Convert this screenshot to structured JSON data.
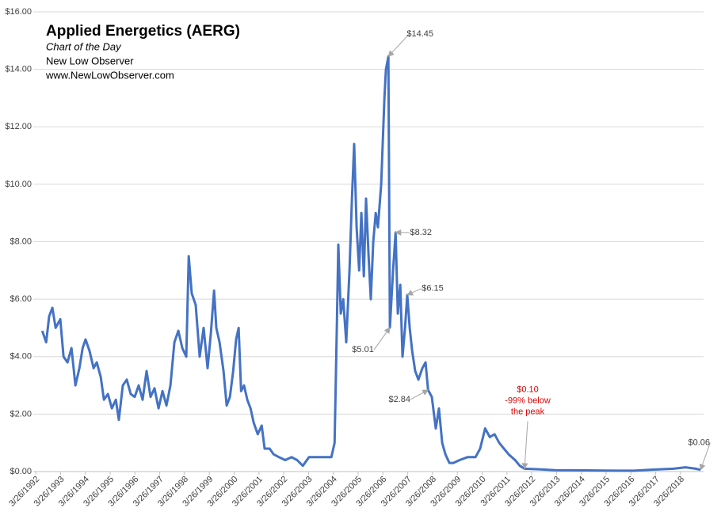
{
  "chart_data": {
    "type": "line",
    "title": "Applied Energetics (AERG)",
    "subtitle": "Chart of the Day",
    "source_lines": [
      "New Low Observer",
      "www.NewLowObserver.com"
    ],
    "color": "#4472c4",
    "grid": true,
    "x": [
      1992.49,
      1992.65,
      1992.77,
      1992.9,
      1993.03,
      1993.22,
      1993.35,
      1993.51,
      1993.67,
      1993.83,
      1993.99,
      1994.12,
      1994.24,
      1994.4,
      1994.56,
      1994.69,
      1994.85,
      1994.98,
      1995.14,
      1995.3,
      1995.46,
      1995.58,
      1995.74,
      1995.9,
      1996.06,
      1996.22,
      1996.38,
      1996.54,
      1996.7,
      1996.86,
      1997.02,
      1997.18,
      1997.34,
      1997.5,
      1997.66,
      1997.82,
      1997.98,
      1998.14,
      1998.3,
      1998.4,
      1998.52,
      1998.68,
      1998.84,
      1999.0,
      1999.16,
      1999.29,
      1999.42,
      1999.51,
      1999.64,
      1999.8,
      1999.93,
      2000.06,
      2000.19,
      2000.31,
      2000.41,
      2000.51,
      2000.63,
      2000.76,
      2000.89,
      2001.02,
      2001.18,
      2001.34,
      2001.46,
      2001.66,
      2001.82,
      2002.04,
      2002.29,
      2002.55,
      2002.77,
      2003.0,
      2003.25,
      2003.57,
      2003.89,
      2004.15,
      2004.28,
      2004.37,
      2004.43,
      2004.53,
      2004.63,
      2004.75,
      2004.88,
      2004.98,
      2005.07,
      2005.17,
      2005.27,
      2005.36,
      2005.46,
      2005.55,
      2005.65,
      2005.74,
      2005.84,
      2005.94,
      2006.03,
      2006.16,
      2006.29,
      2006.35,
      2006.45,
      2006.48,
      2006.51,
      2006.64,
      2006.74,
      2006.83,
      2006.93,
      2007.02,
      2007.12,
      2007.21,
      2007.31,
      2007.41,
      2007.53,
      2007.66,
      2007.82,
      2007.95,
      2008.05,
      2008.2,
      2008.36,
      2008.49,
      2008.62,
      2008.75,
      2008.91,
      2009.07,
      2009.32,
      2009.64,
      2009.96,
      2010.15,
      2010.35,
      2010.54,
      2010.73,
      2010.92,
      2011.11,
      2011.3,
      2011.56,
      2011.75,
      2011.94,
      2012.52,
      2013.16,
      2014.43,
      2015.71,
      2016.35,
      2016.99,
      2017.95,
      2018.43,
      2018.84,
      2019.04
    ],
    "values": [
      4.9,
      4.5,
      5.4,
      5.7,
      5.0,
      5.3,
      4.0,
      3.8,
      4.3,
      3.0,
      3.6,
      4.3,
      4.6,
      4.2,
      3.6,
      3.8,
      3.3,
      2.5,
      2.7,
      2.2,
      2.5,
      1.8,
      3.0,
      3.2,
      2.7,
      2.6,
      3.0,
      2.5,
      3.5,
      2.6,
      2.9,
      2.2,
      2.8,
      2.3,
      3.0,
      4.5,
      4.9,
      4.3,
      4.0,
      7.5,
      6.2,
      5.8,
      4.0,
      5.0,
      3.6,
      4.8,
      6.3,
      5.0,
      4.5,
      3.5,
      2.3,
      2.6,
      3.5,
      4.6,
      5.0,
      2.8,
      3.0,
      2.5,
      2.2,
      1.7,
      1.3,
      1.6,
      0.8,
      0.8,
      0.6,
      0.5,
      0.4,
      0.5,
      0.4,
      0.2,
      0.5,
      0.5,
      0.5,
      0.5,
      1.0,
      5.0,
      7.9,
      5.5,
      6.0,
      4.5,
      7.0,
      9.5,
      11.4,
      8.5,
      7.0,
      9.0,
      6.8,
      9.5,
      7.5,
      6.0,
      8.0,
      9.0,
      8.5,
      10.0,
      13.0,
      14.0,
      14.45,
      10.0,
      5.01,
      7.0,
      8.32,
      5.5,
      6.5,
      4.0,
      5.0,
      6.15,
      5.0,
      4.2,
      3.5,
      3.2,
      3.6,
      3.8,
      2.84,
      2.6,
      1.5,
      2.2,
      1.0,
      0.6,
      0.3,
      0.3,
      0.4,
      0.5,
      0.5,
      0.8,
      1.5,
      1.2,
      1.3,
      1.0,
      0.8,
      0.6,
      0.4,
      0.2,
      0.1,
      0.08,
      0.05,
      0.04,
      0.03,
      0.03,
      0.06,
      0.1,
      0.15,
      0.1,
      0.06
    ],
    "xlim": [
      1992.13,
      2019.16
    ],
    "xticks": [
      {
        "value": 1992.23,
        "label": "3/26/1992"
      },
      {
        "value": 1993.23,
        "label": "3/26/1993"
      },
      {
        "value": 1994.23,
        "label": "3/26/1994"
      },
      {
        "value": 1995.23,
        "label": "3/26/1995"
      },
      {
        "value": 1996.23,
        "label": "3/26/1996"
      },
      {
        "value": 1997.23,
        "label": "3/26/1997"
      },
      {
        "value": 1998.23,
        "label": "3/26/1998"
      },
      {
        "value": 1999.23,
        "label": "3/26/1999"
      },
      {
        "value": 2000.23,
        "label": "3/26/2000"
      },
      {
        "value": 2001.23,
        "label": "3/26/2001"
      },
      {
        "value": 2002.23,
        "label": "3/26/2002"
      },
      {
        "value": 2003.23,
        "label": "3/26/2003"
      },
      {
        "value": 2004.23,
        "label": "3/26/2004"
      },
      {
        "value": 2005.23,
        "label": "3/26/2005"
      },
      {
        "value": 2006.23,
        "label": "3/26/2006"
      },
      {
        "value": 2007.23,
        "label": "3/26/2007"
      },
      {
        "value": 2008.23,
        "label": "3/26/2008"
      },
      {
        "value": 2009.23,
        "label": "3/26/2009"
      },
      {
        "value": 2010.23,
        "label": "3/26/2010"
      },
      {
        "value": 2011.23,
        "label": "3/26/2011"
      },
      {
        "value": 2012.23,
        "label": "3/26/2012"
      },
      {
        "value": 2013.23,
        "label": "3/26/2013"
      },
      {
        "value": 2014.23,
        "label": "3/26/2014"
      },
      {
        "value": 2015.23,
        "label": "3/26/2015"
      },
      {
        "value": 2016.23,
        "label": "3/26/2016"
      },
      {
        "value": 2017.23,
        "label": "3/26/2017"
      },
      {
        "value": 2018.23,
        "label": "3/26/2018"
      }
    ],
    "ylim": [
      0,
      16
    ],
    "yticks": [
      {
        "value": 0,
        "label": "$0.00"
      },
      {
        "value": 2,
        "label": "$2.00"
      },
      {
        "value": 4,
        "label": "$4.00"
      },
      {
        "value": 6,
        "label": "$6.00"
      },
      {
        "value": 8,
        "label": "$8.00"
      },
      {
        "value": 10,
        "label": "$10.00"
      },
      {
        "value": 12,
        "label": "$12.00"
      },
      {
        "value": 14,
        "label": "$14.00"
      },
      {
        "value": 16,
        "label": "$16.00"
      }
    ],
    "annotations": [
      {
        "lines": [
          "$14.45"
        ],
        "x": 2006.45,
        "y": 14.45,
        "color": "#404040"
      },
      {
        "lines": [
          "$8.32"
        ],
        "x": 2006.74,
        "y": 8.32,
        "color": "#404040"
      },
      {
        "lines": [
          "$6.15"
        ],
        "x": 2007.21,
        "y": 6.15,
        "color": "#404040"
      },
      {
        "lines": [
          "$5.01"
        ],
        "x": 2006.51,
        "y": 5.01,
        "color": "#404040"
      },
      {
        "lines": [
          "$2.84"
        ],
        "x": 2008.05,
        "y": 2.84,
        "color": "#404040"
      },
      {
        "lines": [
          "$0.10",
          "-99% below",
          "the peak"
        ],
        "x": 2011.94,
        "y": 0.1,
        "color": "#e00000"
      },
      {
        "lines": [
          "$0.06"
        ],
        "x": 2019.04,
        "y": 0.06,
        "color": "#404040"
      }
    ]
  }
}
